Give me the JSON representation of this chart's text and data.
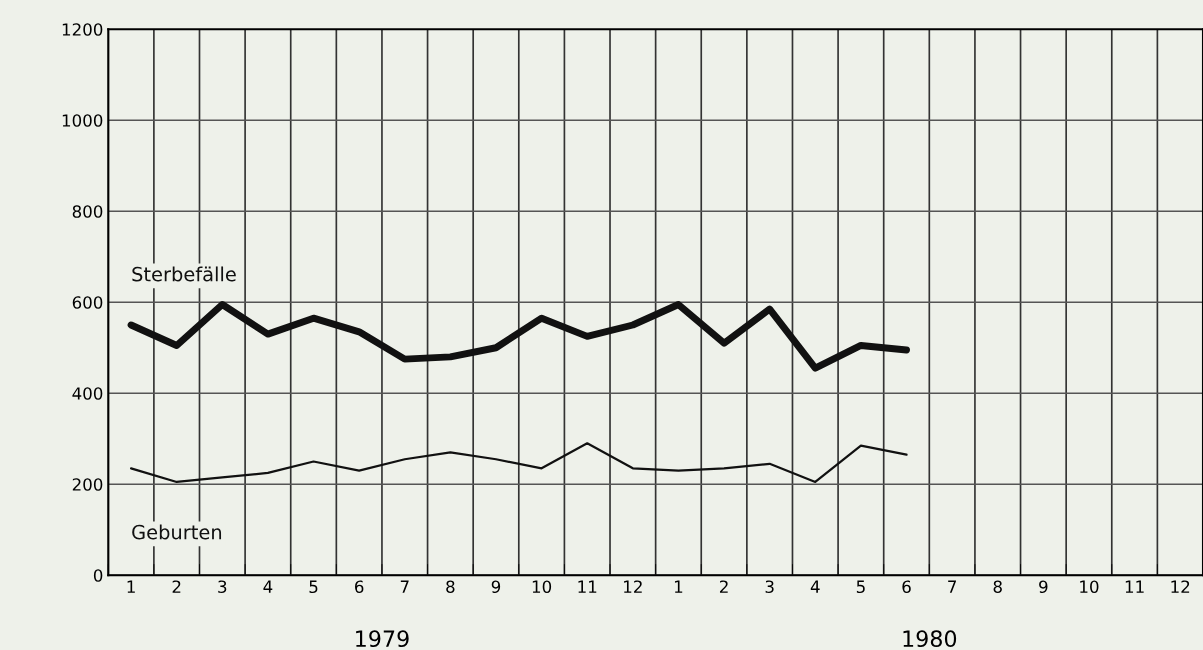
{
  "chart_data": {
    "type": "line",
    "categories": [
      "1",
      "2",
      "3",
      "4",
      "5",
      "6",
      "7",
      "8",
      "9",
      "10",
      "11",
      "12",
      "1",
      "2",
      "3",
      "4",
      "5",
      "6",
      "7",
      "8",
      "9",
      "10",
      "11",
      "12"
    ],
    "series": [
      {
        "name": "Sterbefälle",
        "color": "#111111",
        "values": [
          550,
          505,
          595,
          530,
          565,
          535,
          475,
          480,
          500,
          565,
          525,
          550,
          595,
          510,
          585,
          455,
          505,
          495,
          null,
          null,
          null,
          null,
          null,
          null
        ]
      },
      {
        "name": "Geburten",
        "color": "#111111",
        "values": [
          235,
          205,
          215,
          225,
          250,
          230,
          255,
          270,
          255,
          235,
          290,
          235,
          230,
          235,
          245,
          205,
          285,
          265,
          null,
          null,
          null,
          null,
          null,
          null
        ]
      }
    ],
    "ylim": [
      0,
      1200
    ],
    "yticks": [
      0,
      200,
      400,
      600,
      800,
      1000,
      1200
    ],
    "annotations": [
      "1979",
      "1980"
    ],
    "grid": true,
    "legend": false,
    "marker": "none",
    "line_style": "solid"
  }
}
